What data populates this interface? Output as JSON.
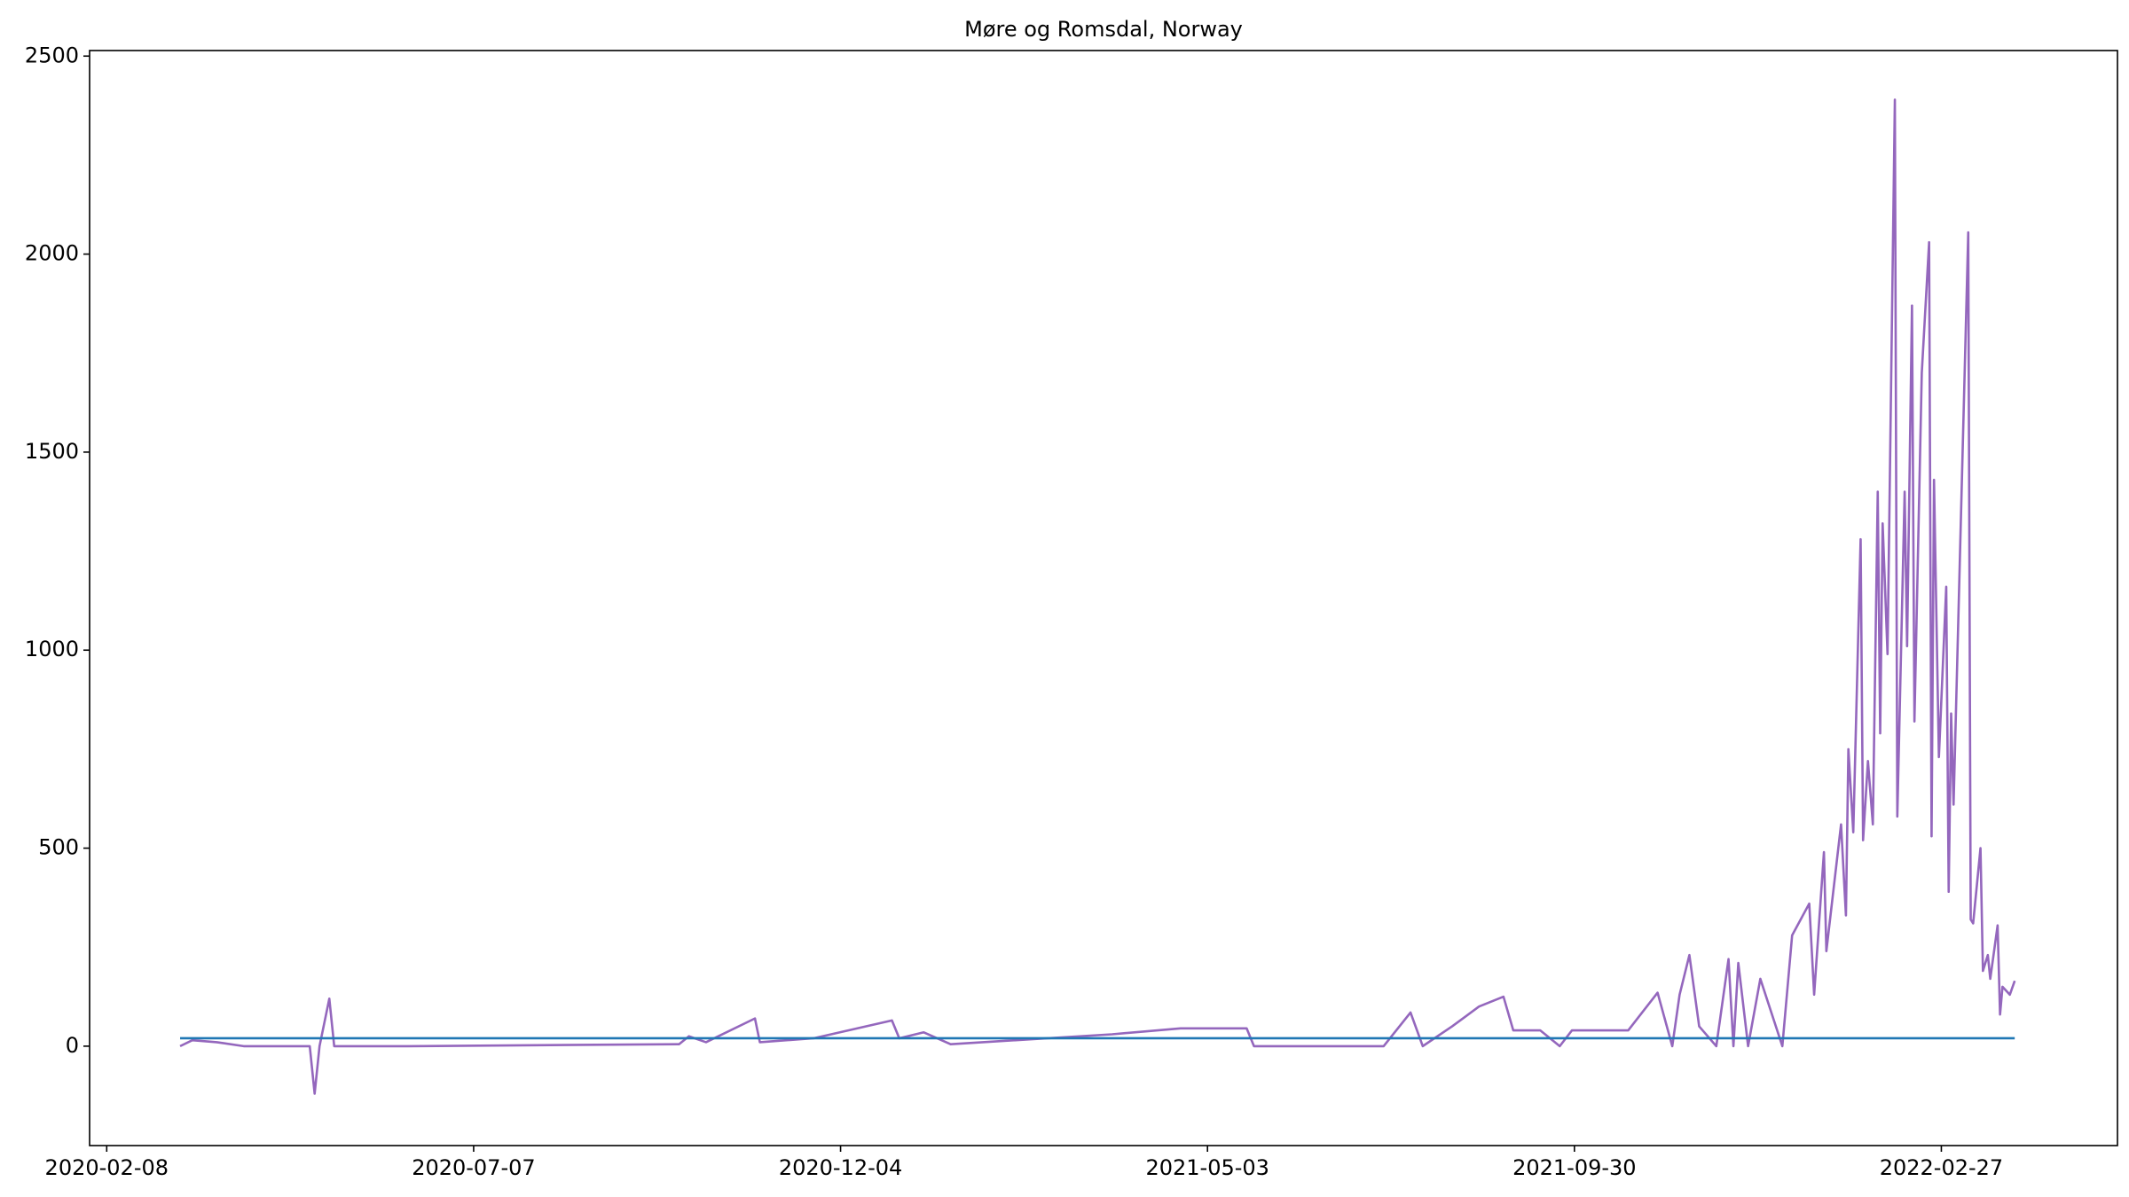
{
  "chart_data": {
    "type": "line",
    "title": "Møre og Romsdal, Norway",
    "xlim": [
      "2020-02-01",
      "2022-05-10"
    ],
    "xticks": [
      "2020-02-08",
      "2020-07-07",
      "2020-12-04",
      "2021-05-03",
      "2021-09-30",
      "2022-02-27"
    ],
    "ylim": [
      -251,
      2514
    ],
    "yticks": [
      0,
      500,
      1000,
      1500,
      2000,
      2500
    ],
    "series": [
      {
        "color": "#9467bd",
        "x": [
          "2020-03-09",
          "2020-03-14",
          "2020-03-24",
          "2020-04-04",
          "2020-05-01",
          "2020-05-03",
          "2020-05-05",
          "2020-05-09",
          "2020-05-11",
          "2020-06-10",
          "2020-09-29",
          "2020-10-03",
          "2020-10-10",
          "2020-10-30",
          "2020-11-01",
          "2020-11-23",
          "2020-12-25",
          "2020-12-28",
          "2021-01-07",
          "2021-01-18",
          "2021-03-25",
          "2021-04-22",
          "2021-05-19",
          "2021-05-22",
          "2021-07-14",
          "2021-07-25",
          "2021-07-30",
          "2021-08-11",
          "2021-08-22",
          "2021-09-01",
          "2021-09-05",
          "2021-09-16",
          "2021-09-24",
          "2021-09-29",
          "2021-10-22",
          "2021-11-03",
          "2021-11-09",
          "2021-11-12",
          "2021-11-16",
          "2021-11-20",
          "2021-11-27",
          "2021-12-02",
          "2021-12-04",
          "2021-12-06",
          "2021-12-10",
          "2021-12-15",
          "2021-12-24",
          "2021-12-28",
          "2022-01-04",
          "2022-01-06",
          "2022-01-10",
          "2022-01-11",
          "2022-01-17",
          "2022-01-19",
          "2022-01-20",
          "2022-01-22",
          "2022-01-25",
          "2022-01-26",
          "2022-01-28",
          "2022-01-30",
          "2022-02-01",
          "2022-02-02",
          "2022-02-03",
          "2022-02-05",
          "2022-02-08",
          "2022-02-09",
          "2022-02-12",
          "2022-02-13",
          "2022-02-15",
          "2022-02-16",
          "2022-02-19",
          "2022-02-22",
          "2022-02-23",
          "2022-02-24",
          "2022-02-26",
          "2022-03-01",
          "2022-03-02",
          "2022-03-03",
          "2022-03-04",
          "2022-03-10",
          "2022-03-11",
          "2022-03-12",
          "2022-03-15",
          "2022-03-16",
          "2022-03-18",
          "2022-03-19",
          "2022-03-22",
          "2022-03-23",
          "2022-03-24",
          "2022-03-27",
          "2022-03-29"
        ],
        "values": [
          0,
          15,
          10,
          0,
          0,
          -120,
          0,
          120,
          0,
          0,
          5,
          25,
          10,
          70,
          10,
          20,
          65,
          20,
          35,
          5,
          30,
          45,
          45,
          0,
          0,
          85,
          0,
          50,
          100,
          125,
          40,
          40,
          0,
          40,
          40,
          135,
          0,
          130,
          230,
          50,
          0,
          220,
          0,
          210,
          0,
          170,
          0,
          280,
          360,
          130,
          490,
          240,
          560,
          330,
          750,
          540,
          1280,
          520,
          720,
          560,
          1400,
          790,
          1320,
          990,
          2390,
          580,
          1400,
          1010,
          1870,
          820,
          1700,
          2030,
          530,
          1430,
          730,
          1160,
          390,
          840,
          610,
          2055,
          320,
          310,
          500,
          190,
          230,
          170,
          305,
          80,
          150,
          130,
          165
        ]
      },
      {
        "color": "#1f77b4",
        "x": [
          "2020-03-09",
          "2022-03-29"
        ],
        "values": [
          20,
          20
        ]
      }
    ]
  }
}
